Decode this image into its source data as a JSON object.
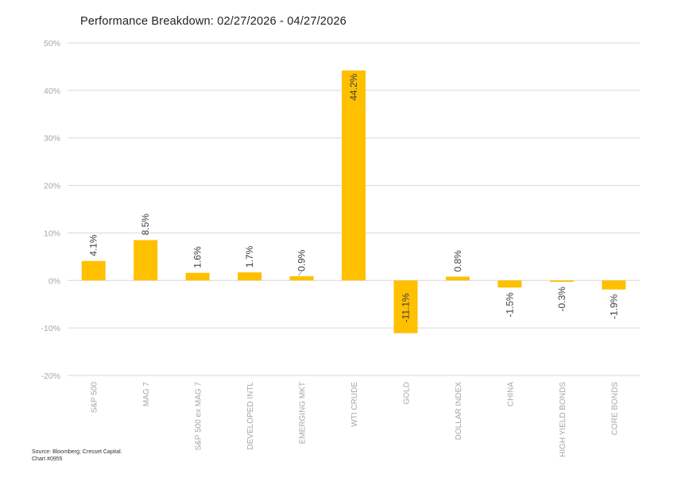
{
  "title": "Performance Breakdown: 02/27/2026 - 04/27/2026",
  "source": {
    "line1": "Source: Bloomberg; Cresset Capital.",
    "line2": "Chart #0955"
  },
  "colors": {
    "bar": "#FFC000",
    "grid": "#D9D9D9",
    "axis_text": "#A6A6A6",
    "label_text": "#404040"
  },
  "chart_data": {
    "type": "bar",
    "title": "Performance Breakdown: 02/27/2026 - 04/27/2026",
    "xlabel": "",
    "ylabel": "",
    "ylim": [
      -20,
      50
    ],
    "yticks": [
      -20,
      -10,
      0,
      10,
      20,
      30,
      40,
      50
    ],
    "ytick_labels": [
      "-20%",
      "-10%",
      "0%",
      "10%",
      "20%",
      "30%",
      "40%",
      "50%"
    ],
    "grid": true,
    "legend": null,
    "categories": [
      "S&P 500",
      "MAG 7",
      "S&P 500 ex MAG 7",
      "DEVELOPED INTL",
      "EMERGING MKT",
      "WTI CRUDE",
      "GOLD",
      "DOLLAR INDEX",
      "CHINA",
      "HIGH YIELD BONDS",
      "CORE BONDS"
    ],
    "values": [
      4.1,
      8.5,
      1.6,
      1.7,
      0.9,
      44.2,
      -11.1,
      0.8,
      -1.5,
      -0.3,
      -1.9
    ],
    "data_labels": [
      "4.1%",
      "8.5%",
      "1.6%",
      "1.7%",
      "0.9%",
      "44.2%",
      "-11.1%",
      "0.8%",
      "-1.5%",
      "-0.3%",
      "-1.9%"
    ]
  }
}
